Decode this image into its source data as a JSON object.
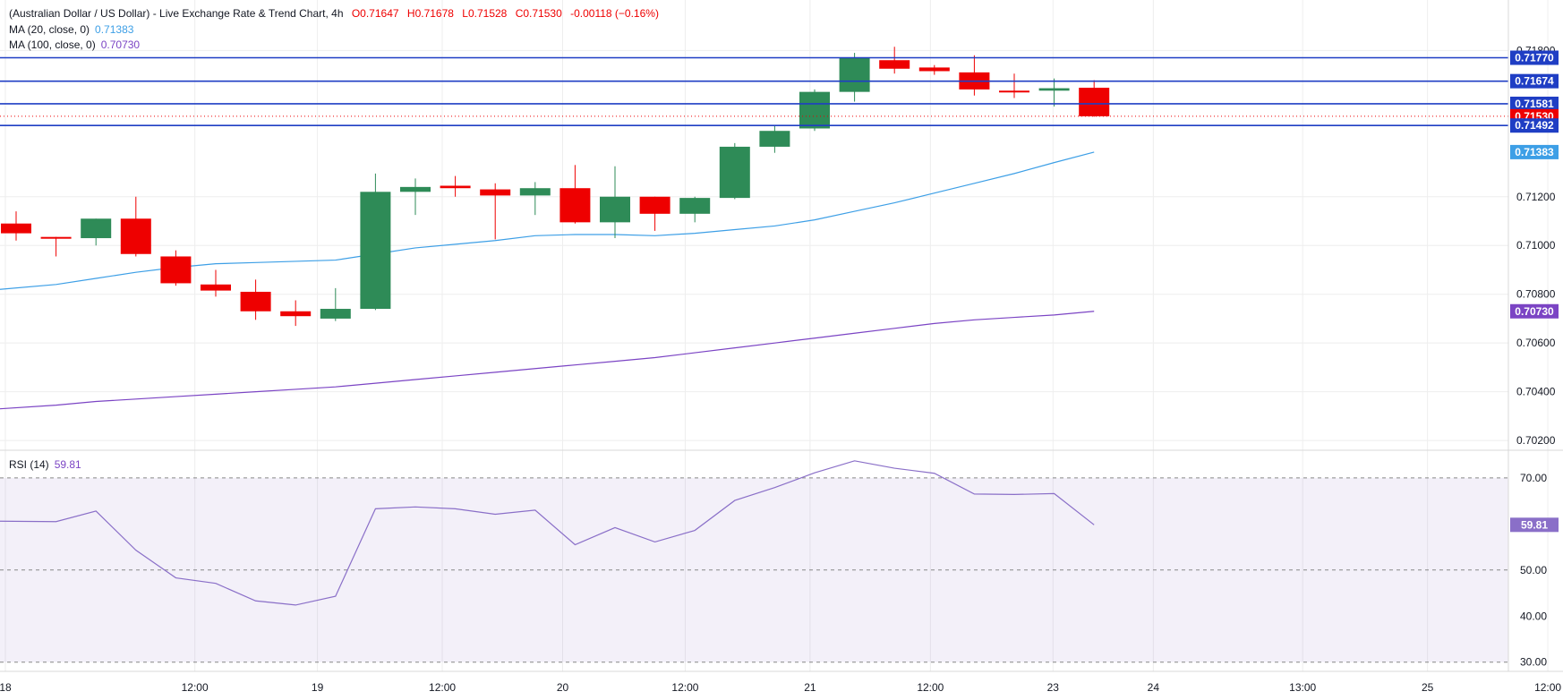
{
  "header": {
    "symbol_title": "(Australian Dollar / US Dollar) - Live Exchange Rate & Trend Chart, 4h",
    "ohlc": {
      "o": "O0.71647",
      "h": "H0.71678",
      "l": "L0.71528",
      "c": "C0.71530",
      "change": "-0.00118 (−0.16%)"
    },
    "ma20_label": "MA (20, close, 0)",
    "ma20_value": "0.71383",
    "ma100_label": "MA (100, close, 0)",
    "ma100_value": "0.70730",
    "rsi_label": "RSI (14)",
    "rsi_value": "59.81"
  },
  "colors": {
    "up": "#2e8b57",
    "down": "#ee0000",
    "ma20": "#3d9fe6",
    "ma100": "#7b44c4",
    "rsi": "#8a6fc8",
    "level": "#1f3ec4",
    "grid": "#eeeeee"
  },
  "chart_data": [
    {
      "type": "candlestick",
      "title": "(Australian Dollar / US Dollar) - Live Exchange Rate & Trend Chart, 4h",
      "ylim": [
        0.7016,
        0.7186
      ],
      "y_ticks": [
        "0.70200",
        "0.70400",
        "0.70600",
        "0.70800",
        "0.71000",
        "0.71200",
        "0.71800"
      ],
      "x_ticks": [
        "18",
        "12:00",
        "19",
        "12:00",
        "20",
        "12:00",
        "21",
        "12:00",
        "23",
        "24",
        "13:00",
        "25",
        "12:00"
      ],
      "candles": [
        {
          "o": 0.7109,
          "h": 0.7114,
          "l": 0.7102,
          "c": 0.7105
        },
        {
          "o": 0.71035,
          "h": 0.71035,
          "l": 0.70955,
          "c": 0.7103
        },
        {
          "o": 0.7103,
          "h": 0.7111,
          "l": 0.71,
          "c": 0.7111
        },
        {
          "o": 0.7111,
          "h": 0.712,
          "l": 0.70955,
          "c": 0.70965
        },
        {
          "o": 0.70955,
          "h": 0.7098,
          "l": 0.70835,
          "c": 0.70845
        },
        {
          "o": 0.7084,
          "h": 0.709,
          "l": 0.7079,
          "c": 0.70815
        },
        {
          "o": 0.7081,
          "h": 0.7086,
          "l": 0.70695,
          "c": 0.7073
        },
        {
          "o": 0.7073,
          "h": 0.70775,
          "l": 0.7067,
          "c": 0.7071
        },
        {
          "o": 0.707,
          "h": 0.70825,
          "l": 0.7069,
          "c": 0.7074
        },
        {
          "o": 0.7074,
          "h": 0.71295,
          "l": 0.70735,
          "c": 0.7122
        },
        {
          "o": 0.7122,
          "h": 0.71275,
          "l": 0.71125,
          "c": 0.7124
        },
        {
          "o": 0.71245,
          "h": 0.71285,
          "l": 0.712,
          "c": 0.71235
        },
        {
          "o": 0.7123,
          "h": 0.71255,
          "l": 0.71025,
          "c": 0.71205
        },
        {
          "o": 0.71205,
          "h": 0.7126,
          "l": 0.71125,
          "c": 0.71235
        },
        {
          "o": 0.71235,
          "h": 0.7133,
          "l": 0.7109,
          "c": 0.71095
        },
        {
          "o": 0.71095,
          "h": 0.71325,
          "l": 0.7103,
          "c": 0.712
        },
        {
          "o": 0.712,
          "h": 0.712,
          "l": 0.7106,
          "c": 0.7113
        },
        {
          "o": 0.7113,
          "h": 0.712,
          "l": 0.71095,
          "c": 0.71195
        },
        {
          "o": 0.71195,
          "h": 0.7142,
          "l": 0.7119,
          "c": 0.71405
        },
        {
          "o": 0.71405,
          "h": 0.7149,
          "l": 0.7138,
          "c": 0.7147
        },
        {
          "o": 0.7148,
          "h": 0.7164,
          "l": 0.7147,
          "c": 0.7163
        },
        {
          "o": 0.7163,
          "h": 0.7179,
          "l": 0.7159,
          "c": 0.7177
        },
        {
          "o": 0.7176,
          "h": 0.71815,
          "l": 0.71705,
          "c": 0.71725
        },
        {
          "o": 0.7173,
          "h": 0.7174,
          "l": 0.717,
          "c": 0.71715
        },
        {
          "o": 0.7171,
          "h": 0.7178,
          "l": 0.71615,
          "c": 0.7164
        },
        {
          "o": 0.71635,
          "h": 0.71705,
          "l": 0.71605,
          "c": 0.7163
        },
        {
          "o": 0.71635,
          "h": 0.71685,
          "l": 0.7157,
          "c": 0.71645
        },
        {
          "o": 0.71647,
          "h": 0.71678,
          "l": 0.71528,
          "c": 0.7153
        }
      ],
      "series": [
        {
          "name": "MA (20, close, 0)",
          "values": [
            0.7082,
            0.7084,
            0.70865,
            0.7089,
            0.7091,
            0.70925,
            0.7093,
            0.70935,
            0.7094,
            0.70965,
            0.7099,
            0.71005,
            0.7102,
            0.7104,
            0.71045,
            0.71045,
            0.7104,
            0.7105,
            0.71065,
            0.7108,
            0.71105,
            0.7114,
            0.71175,
            0.71215,
            0.71255,
            0.71295,
            0.7134,
            0.71383
          ]
        },
        {
          "name": "MA (100, close, 0)",
          "values": [
            0.7033,
            0.70345,
            0.7036,
            0.7037,
            0.7038,
            0.7039,
            0.704,
            0.7041,
            0.7042,
            0.70435,
            0.7045,
            0.70465,
            0.7048,
            0.70495,
            0.7051,
            0.70525,
            0.7054,
            0.7056,
            0.7058,
            0.706,
            0.7062,
            0.7064,
            0.7066,
            0.7068,
            0.70695,
            0.70705,
            0.70715,
            0.7073
          ]
        }
      ],
      "levels": [
        0.7177,
        0.71674,
        0.71581,
        0.71492
      ],
      "price_labels": [
        {
          "text": "0.71770",
          "value": 0.7177,
          "color": "level"
        },
        {
          "text": "0.71674",
          "value": 0.71674,
          "color": "level"
        },
        {
          "text": "0.71581",
          "value": 0.71581,
          "color": "level"
        },
        {
          "text": "0.71530",
          "value": 0.7153,
          "color": "down"
        },
        {
          "text": "0.71492",
          "value": 0.71492,
          "color": "level"
        },
        {
          "text": "0.71383",
          "value": 0.71383,
          "color": "ma20"
        },
        {
          "text": "0.70730",
          "value": 0.7073,
          "color": "ma100"
        }
      ]
    },
    {
      "type": "line",
      "title": "RSI (14)",
      "ylim": [
        28,
        76
      ],
      "y_ticks": [
        "30.00",
        "40.00",
        "50.00",
        "60.00",
        "70.00"
      ],
      "bands": [
        30,
        50,
        70
      ],
      "series": [
        {
          "name": "RSI (14)",
          "values": [
            60.6,
            60.5,
            62.8,
            54.3,
            48.3,
            47.1,
            43.3,
            42.4,
            44.3,
            63.3,
            63.7,
            63.3,
            62.1,
            63.0,
            55.5,
            59.2,
            56.1,
            58.6,
            65.1,
            67.9,
            71.1,
            73.7,
            72.1,
            71.0,
            66.5,
            66.4,
            66.6,
            59.81
          ]
        }
      ],
      "current_label": "59.81"
    }
  ]
}
